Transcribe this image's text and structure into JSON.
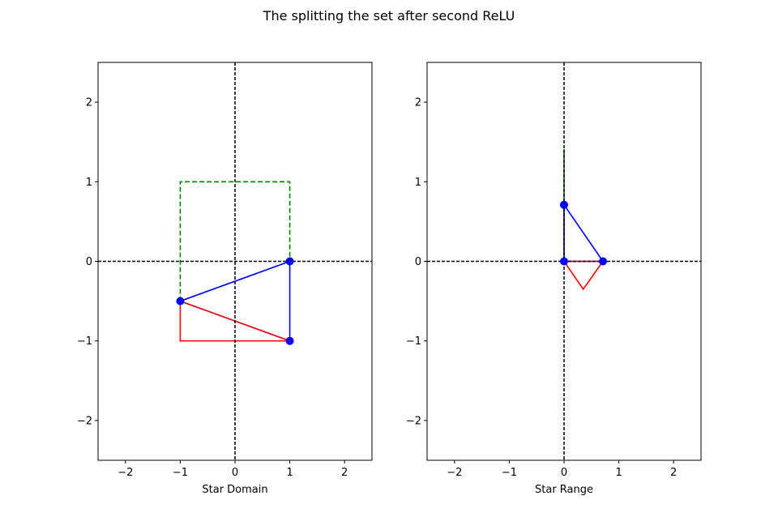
{
  "figure": {
    "title": "The splitting the set after second ReLU"
  },
  "chart_data": [
    {
      "type": "line",
      "title": "",
      "xlabel": "Star Domain",
      "ylabel": "",
      "xlim": [
        -2.5,
        2.5
      ],
      "ylim": [
        -2.5,
        2.5
      ],
      "xticks": [
        -2,
        -1,
        0,
        1,
        2
      ],
      "yticks": [
        -2,
        -1,
        0,
        1,
        2
      ],
      "xtick_labels": [
        "−2",
        "−1",
        "0",
        "1",
        "2"
      ],
      "ytick_labels": [
        "−2",
        "−1",
        "0",
        "1",
        "2"
      ],
      "reference_lines": {
        "x": 0,
        "y": 0,
        "color": "#000000",
        "style": "dashed"
      },
      "series": [
        {
          "color": "#008000",
          "style": "dashed",
          "closed": true,
          "points": [
            [
              -1,
              -0.5
            ],
            [
              -1,
              1
            ],
            [
              1,
              1
            ],
            [
              1,
              0
            ]
          ]
        },
        {
          "color": "#0000ff",
          "style": "solid",
          "closed": true,
          "markers": true,
          "points": [
            [
              1,
              0
            ],
            [
              1,
              -1
            ],
            [
              -1,
              -0.5
            ]
          ]
        },
        {
          "color": "#ff0000",
          "style": "solid",
          "closed": true,
          "points": [
            [
              -1,
              -0.5
            ],
            [
              -1,
              -1
            ],
            [
              1,
              -1
            ]
          ]
        }
      ]
    },
    {
      "type": "line",
      "title": "",
      "xlabel": "Star Range",
      "ylabel": "",
      "xlim": [
        -2.5,
        2.5
      ],
      "ylim": [
        -2.5,
        2.5
      ],
      "xticks": [
        -2,
        -1,
        0,
        1,
        2
      ],
      "yticks": [
        -2,
        -1,
        0,
        1,
        2
      ],
      "xtick_labels": [
        "−2",
        "−1",
        "0",
        "1",
        "2"
      ],
      "ytick_labels": [
        "−2",
        "−1",
        "0",
        "1",
        "2"
      ],
      "reference_lines": {
        "x": 0,
        "y": 0,
        "color": "#000000",
        "style": "dashed"
      },
      "series": [
        {
          "color": "#008000",
          "style": "solid",
          "closed": true,
          "points": [
            [
              0,
              0
            ],
            [
              0,
              1.41
            ],
            [
              0,
              0.71
            ]
          ]
        },
        {
          "color": "#0000ff",
          "style": "solid",
          "closed": true,
          "markers": true,
          "points": [
            [
              0,
              0.71
            ],
            [
              0.71,
              0
            ],
            [
              0,
              0
            ]
          ]
        },
        {
          "color": "#ff0000",
          "style": "solid",
          "closed": true,
          "points": [
            [
              0,
              0
            ],
            [
              0.35,
              -0.35
            ],
            [
              0.71,
              0
            ]
          ]
        }
      ]
    }
  ]
}
